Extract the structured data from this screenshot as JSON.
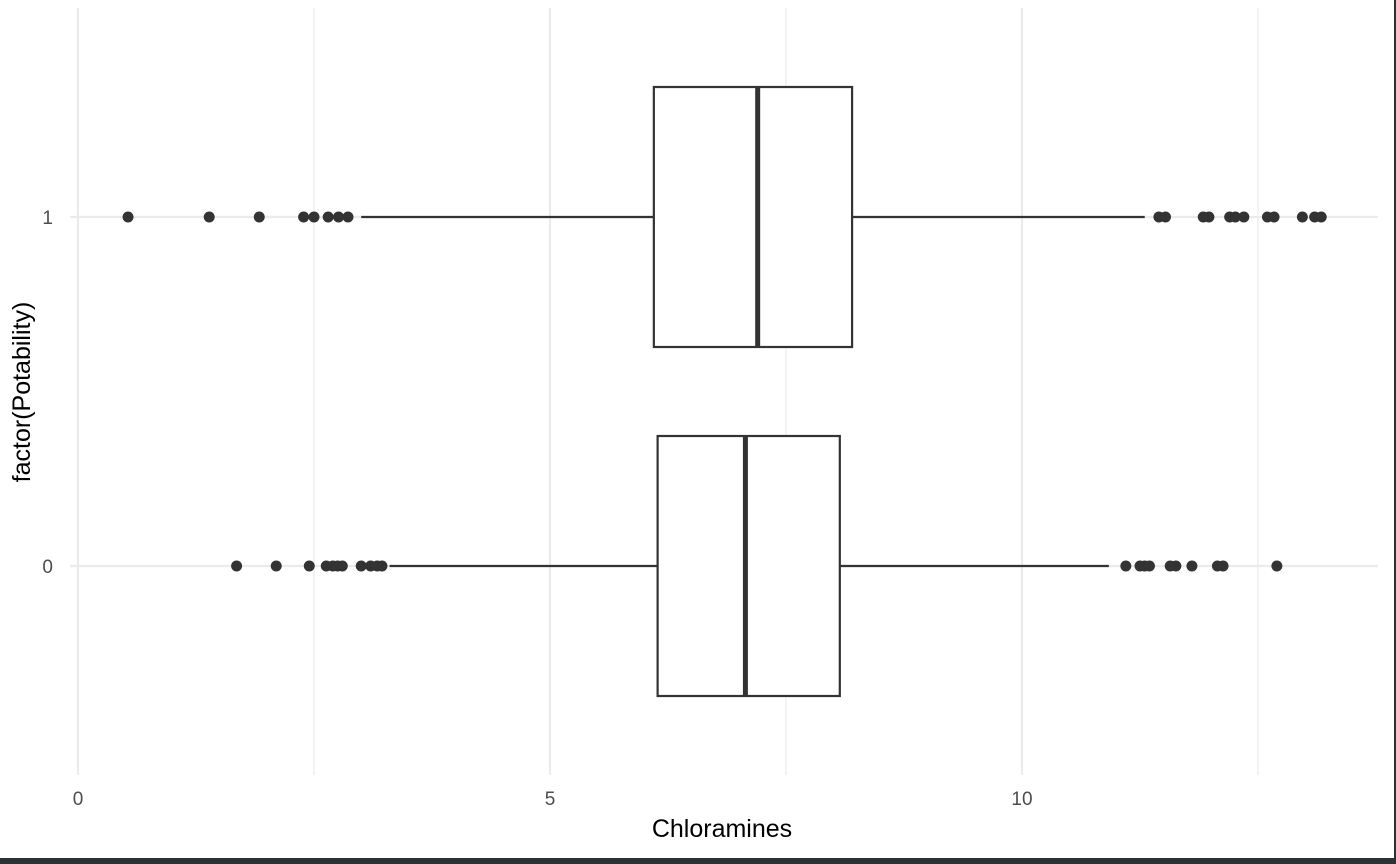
{
  "chart_data": {
    "type": "boxplot",
    "orientation": "horizontal",
    "xlabel": "Chloramines",
    "ylabel": "factor(Potability)",
    "xlim": [
      0,
      13.5
    ],
    "x_ticks": [
      0,
      5,
      10
    ],
    "x_tick_labels": [
      "0",
      "5",
      "10"
    ],
    "categories": [
      "1",
      "0"
    ],
    "grid": "on",
    "legend": "none",
    "series": [
      {
        "category": "1",
        "whisker_low": 3.0,
        "q1": 6.1,
        "median": 7.2,
        "q3": 8.2,
        "whisker_high": 11.3,
        "outliers": [
          0.53,
          1.39,
          1.92,
          2.39,
          2.5,
          2.65,
          2.76,
          2.86,
          11.45,
          11.52,
          11.92,
          11.98,
          12.2,
          12.26,
          12.35,
          12.6,
          12.67,
          12.97,
          13.1,
          13.17
        ]
      },
      {
        "category": "0",
        "whisker_low": 3.3,
        "q1": 6.14,
        "median": 7.07,
        "q3": 8.07,
        "whisker_high": 10.92,
        "outliers": [
          1.68,
          2.1,
          2.45,
          2.63,
          2.7,
          2.75,
          2.8,
          3.0,
          3.1,
          3.17,
          3.22,
          11.1,
          11.25,
          11.3,
          11.35,
          11.57,
          11.63,
          11.8,
          12.07,
          12.13,
          12.7
        ]
      }
    ],
    "colors": {
      "box_outline": "#333333",
      "box_fill": "#ffffff",
      "points": "#333333",
      "grid": "#ebebeb",
      "tick_text": "#4d4d4d"
    }
  }
}
